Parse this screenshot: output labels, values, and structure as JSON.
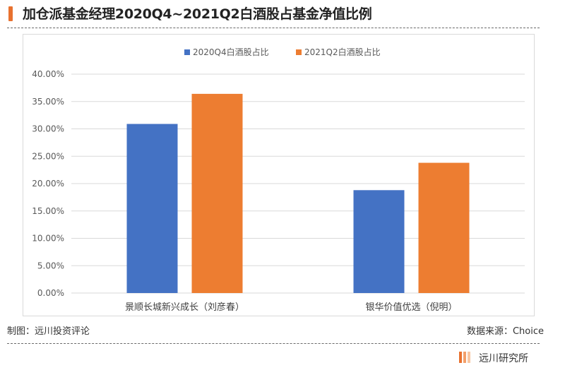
{
  "header": {
    "title": "加仓派基金经理2020Q4~2021Q2白酒股占基金净值比例"
  },
  "colors": {
    "accent": "#e8712f",
    "series_q4": "#4472c4",
    "series_q2": "#ed7d31"
  },
  "chart_data": {
    "type": "bar",
    "title": "",
    "xlabel": "",
    "ylabel": "",
    "categories": [
      "景顺长城新兴成长（刘彦春）",
      "银华价值优选（倪明）"
    ],
    "series": [
      {
        "name": "2020Q4白酒股占比",
        "values": [
          0.309,
          0.188
        ]
      },
      {
        "name": "2021Q2白酒股占比",
        "values": [
          0.364,
          0.238
        ]
      }
    ],
    "ylim": [
      0,
      0.4
    ],
    "y_ticks": [
      "0.00%",
      "5.00%",
      "10.00%",
      "15.00%",
      "20.00%",
      "25.00%",
      "30.00%",
      "35.00%",
      "40.00%"
    ],
    "grid": true,
    "legend_position": "top-center"
  },
  "footer": {
    "maker": "制图：远川投资评论",
    "source": "数据来源：Choice"
  },
  "logo": {
    "text": "远川研究所"
  }
}
